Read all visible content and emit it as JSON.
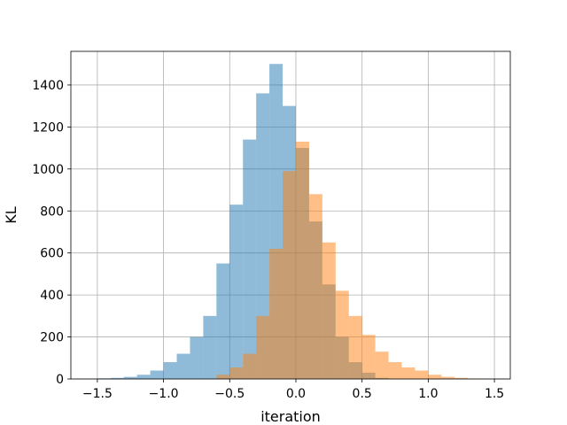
{
  "chart_data": {
    "type": "bar",
    "subtype": "overlapping-histogram",
    "title": "",
    "xlabel": "iteration",
    "ylabel": "KL",
    "xlim": [
      -1.7,
      1.62
    ],
    "ylim": [
      0,
      1560
    ],
    "grid": true,
    "xticks": [
      -1.5,
      -1.0,
      -0.5,
      0.0,
      0.5,
      1.0,
      1.5
    ],
    "xtick_labels": [
      "−1.5",
      "−1.0",
      "−0.5",
      "0.0",
      "0.5",
      "1.0",
      "1.5"
    ],
    "yticks": [
      0,
      200,
      400,
      600,
      800,
      1000,
      1200,
      1400
    ],
    "ytick_labels": [
      "0",
      "200",
      "400",
      "600",
      "800",
      "1000",
      "1200",
      "1400"
    ],
    "series": [
      {
        "color": "#1f77b4",
        "opacity": 0.5,
        "bin_width": 0.1,
        "bin_starts": [
          -1.5,
          -1.4,
          -1.3,
          -1.2,
          -1.1,
          -1.0,
          -0.9,
          -0.8,
          -0.7,
          -0.6,
          -0.5,
          -0.4,
          -0.3,
          -0.2,
          -0.1,
          0.0,
          0.1,
          0.2,
          0.3,
          0.4,
          0.5,
          0.6
        ],
        "values": [
          3,
          5,
          10,
          20,
          40,
          80,
          120,
          200,
          300,
          550,
          830,
          1140,
          1360,
          1500,
          1300,
          1100,
          750,
          450,
          200,
          80,
          30,
          5
        ]
      },
      {
        "color": "#ff7f0e",
        "opacity": 0.5,
        "bin_width": 0.1,
        "bin_starts": [
          -0.6,
          -0.5,
          -0.4,
          -0.3,
          -0.2,
          -0.1,
          0.0,
          0.1,
          0.2,
          0.3,
          0.4,
          0.5,
          0.6,
          0.7,
          0.8,
          0.9,
          1.0,
          1.1,
          1.2,
          1.3
        ],
        "values": [
          20,
          55,
          120,
          300,
          620,
          990,
          1130,
          880,
          650,
          420,
          300,
          210,
          130,
          80,
          55,
          40,
          20,
          10,
          5,
          2
        ]
      }
    ]
  }
}
